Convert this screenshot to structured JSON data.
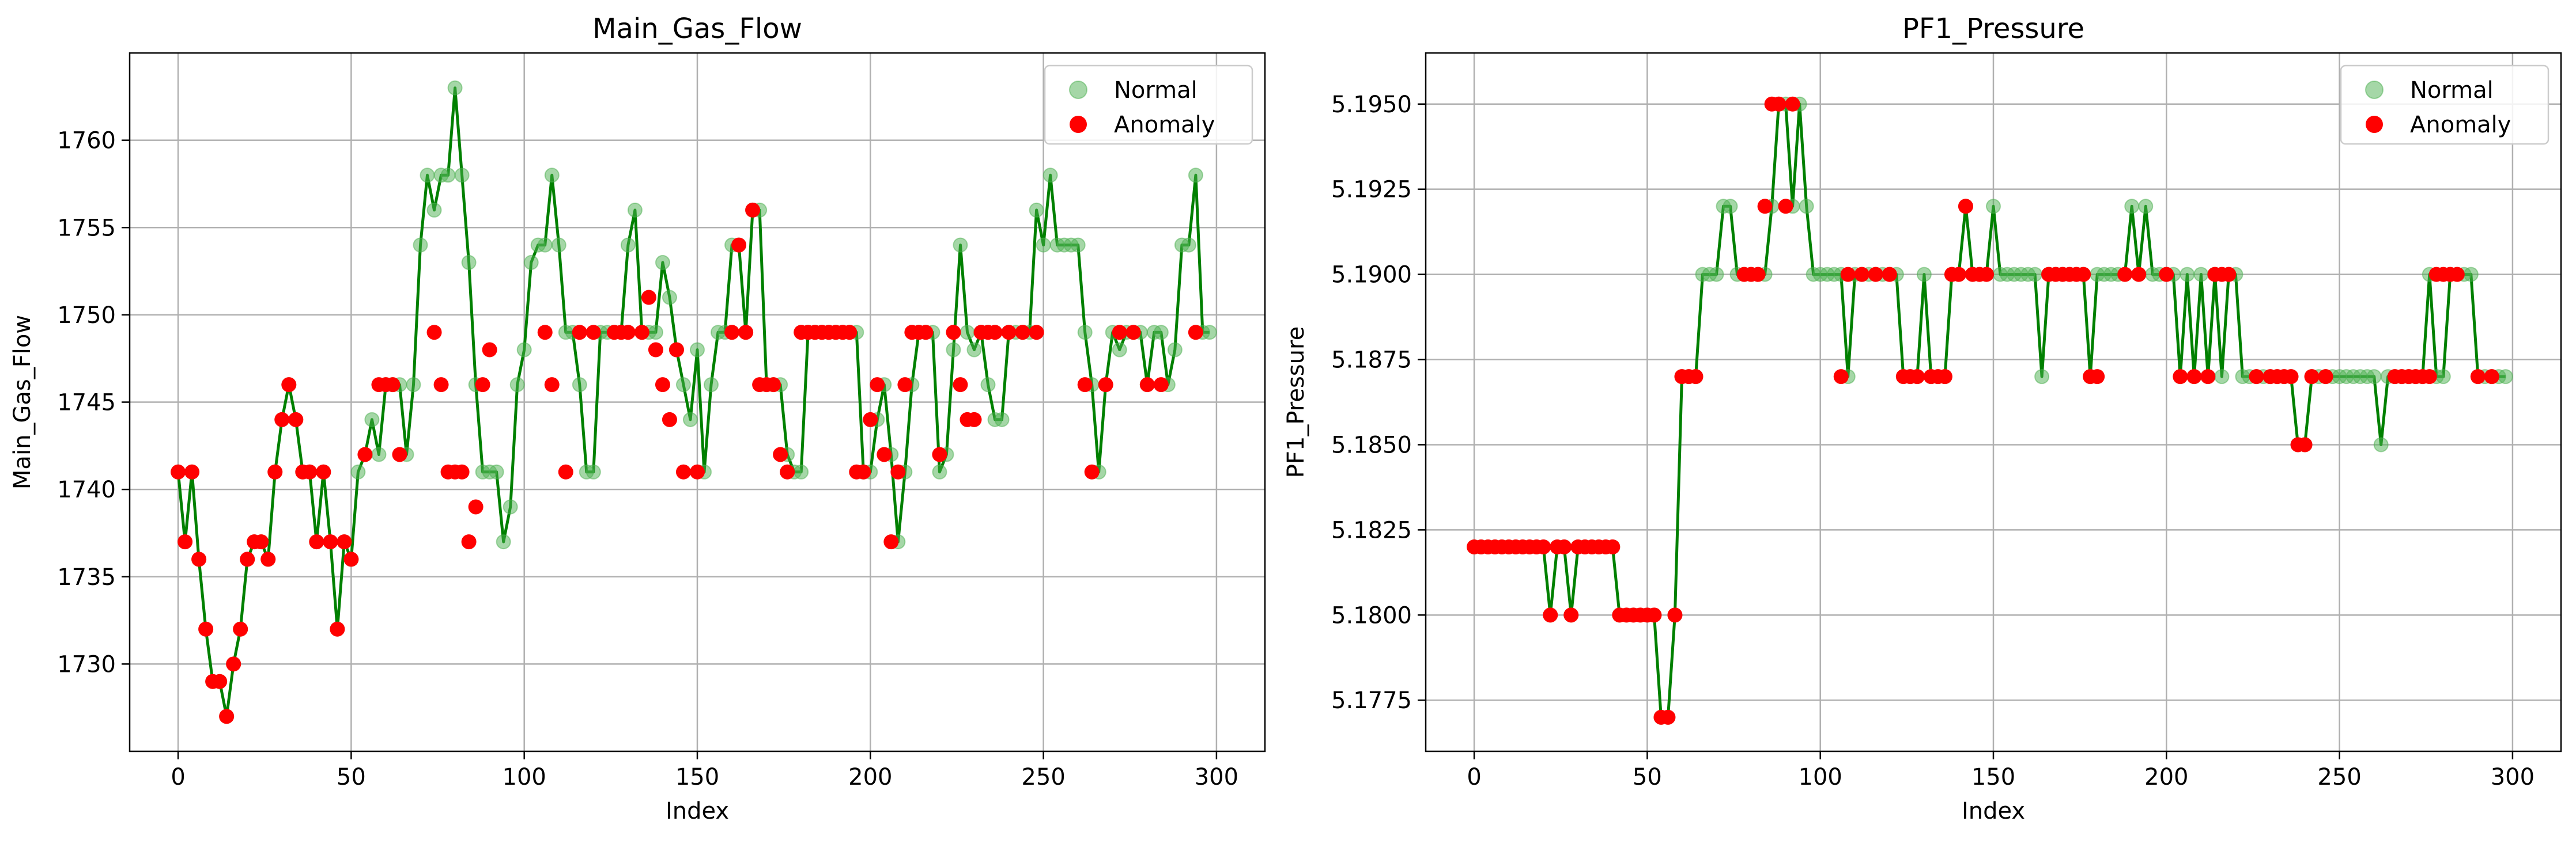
{
  "colors": {
    "line": "#008000",
    "normal_marker": "#4caf50",
    "anomaly_marker": "#ff0000",
    "grid": "#b0b0b0"
  },
  "chart_data": [
    {
      "type": "line",
      "title": "Main_Gas_Flow",
      "xlabel": "Index",
      "ylabel": "Main_Gas_Flow",
      "xlim": [
        -14,
        314
      ],
      "ylim": [
        1725,
        1765
      ],
      "xticks": [
        0,
        50,
        100,
        150,
        200,
        250,
        300
      ],
      "yticks": [
        1730,
        1735,
        1740,
        1745,
        1750,
        1755,
        1760
      ],
      "grid": true,
      "legend_position": "top-right",
      "legend": [
        "Normal",
        "Anomaly"
      ],
      "x": [
        0,
        2,
        4,
        6,
        8,
        10,
        12,
        14,
        16,
        18,
        20,
        22,
        24,
        26,
        28,
        30,
        32,
        34,
        36,
        38,
        40,
        42,
        44,
        46,
        48,
        50,
        52,
        54,
        56,
        58,
        60,
        62,
        64,
        66,
        68,
        70,
        72,
        74,
        76,
        78,
        80,
        82,
        84,
        86,
        88,
        90,
        92,
        94,
        96,
        98,
        100,
        102,
        104,
        106,
        108,
        110,
        112,
        114,
        116,
        118,
        120,
        122,
        124,
        126,
        128,
        130,
        132,
        134,
        136,
        138,
        140,
        142,
        144,
        146,
        148,
        150,
        152,
        154,
        156,
        158,
        160,
        162,
        164,
        166,
        168,
        170,
        172,
        174,
        176,
        178,
        180,
        182,
        184,
        186,
        188,
        190,
        192,
        194,
        196,
        198,
        200,
        202,
        204,
        206,
        208,
        210,
        212,
        214,
        216,
        218,
        220,
        222,
        224,
        226,
        228,
        230,
        232,
        234,
        236,
        238,
        240,
        242,
        244,
        246,
        248,
        250,
        252,
        254,
        256,
        258,
        260,
        262,
        264,
        266,
        268,
        270,
        272,
        274,
        276,
        278,
        280,
        282,
        284,
        286,
        288,
        290,
        292,
        294,
        296,
        298
      ],
      "y": [
        1741,
        1737,
        1741,
        1736,
        1732,
        1729,
        1729,
        1727,
        1730,
        1732,
        1736,
        1737,
        1737,
        1736,
        1741,
        1744,
        1746,
        1744,
        1741,
        1741,
        1737,
        1741,
        1737,
        1732,
        1737,
        1736,
        1741,
        1742,
        1744,
        1742,
        1746,
        1746,
        1746,
        1742,
        1746,
        1754,
        1758,
        1756,
        1758,
        1758,
        1763,
        1758,
        1753,
        1746,
        1741,
        1741,
        1741,
        1737,
        1739,
        1746,
        1748,
        1753,
        1754,
        1754,
        1758,
        1754,
        1749,
        1749,
        1746,
        1741,
        1741,
        1749,
        1749,
        1749,
        1749,
        1754,
        1756,
        1749,
        1749,
        1749,
        1753,
        1751,
        1748,
        1746,
        1744,
        1748,
        1741,
        1746,
        1749,
        1749,
        1754,
        1754,
        1749,
        1756,
        1756,
        1746,
        1746,
        1746,
        1742,
        1741,
        1741,
        1749,
        1749,
        1749,
        1749,
        1749,
        1749,
        1749,
        1749,
        1741,
        1741,
        1744,
        1746,
        1742,
        1737,
        1741,
        1746,
        1749,
        1749,
        1749,
        1741,
        1742,
        1748,
        1754,
        1749,
        1748,
        1749,
        1746,
        1744,
        1744,
        1749,
        1749,
        1749,
        1749,
        1756,
        1754,
        1758,
        1754,
        1754,
        1754,
        1754,
        1749,
        1746,
        1741,
        1746,
        1749,
        1748,
        1749,
        1749,
        1749,
        1746,
        1749,
        1749,
        1746,
        1748,
        1754,
        1754,
        1758,
        1749,
        1749
      ],
      "anomaly_x": [
        0,
        2,
        4,
        6,
        8,
        10,
        12,
        14,
        16,
        18,
        20,
        22,
        24,
        26,
        28,
        30,
        32,
        34,
        36,
        38,
        40,
        42,
        44,
        46,
        48,
        50,
        54,
        58,
        60,
        62,
        64,
        74,
        76,
        78,
        80,
        82,
        84,
        86,
        88,
        90,
        106,
        108,
        112,
        116,
        120,
        126,
        128,
        130,
        134,
        136,
        138,
        140,
        142,
        144,
        146,
        150,
        160,
        162,
        164,
        166,
        168,
        170,
        172,
        174,
        176,
        180,
        182,
        184,
        186,
        188,
        190,
        192,
        194,
        196,
        198,
        200,
        202,
        204,
        206,
        208,
        210,
        212,
        214,
        216,
        220,
        224,
        226,
        228,
        230,
        232,
        234,
        236,
        240,
        244,
        248,
        262,
        264,
        268,
        272,
        276,
        280,
        284,
        294
      ],
      "anomaly_y": [
        1741,
        1737,
        1741,
        1736,
        1732,
        1729,
        1729,
        1727,
        1730,
        1732,
        1736,
        1737,
        1737,
        1736,
        1741,
        1744,
        1746,
        1744,
        1741,
        1741,
        1737,
        1741,
        1737,
        1732,
        1737,
        1736,
        1742,
        1746,
        1746,
        1746,
        1742,
        1749,
        1746,
        1741,
        1741,
        1741,
        1737,
        1739,
        1746,
        1748,
        1749,
        1746,
        1741,
        1749,
        1749,
        1749,
        1749,
        1749,
        1749,
        1751,
        1748,
        1746,
        1744,
        1748,
        1741,
        1741,
        1749,
        1754,
        1749,
        1756,
        1746,
        1746,
        1746,
        1742,
        1741,
        1749,
        1749,
        1749,
        1749,
        1749,
        1749,
        1749,
        1749,
        1741,
        1741,
        1744,
        1746,
        1742,
        1737,
        1741,
        1746,
        1749,
        1749,
        1749,
        1742,
        1749,
        1746,
        1744,
        1744,
        1749,
        1749,
        1749,
        1749,
        1749,
        1749,
        1746,
        1741,
        1746,
        1749,
        1749,
        1746,
        1746,
        1749
      ]
    },
    {
      "type": "line",
      "title": "PF1_Pressure",
      "xlabel": "Index",
      "ylabel": "PF1_Pressure",
      "xlim": [
        -14,
        314
      ],
      "ylim": [
        5.176,
        5.1965
      ],
      "xticks": [
        0,
        50,
        100,
        150,
        200,
        250,
        300
      ],
      "yticks": [
        5.1775,
        5.18,
        5.1825,
        5.185,
        5.1875,
        5.19,
        5.1925,
        5.195
      ],
      "ytick_labels": [
        "5.1775",
        "5.1800",
        "5.1825",
        "5.1850",
        "5.1875",
        "5.1900",
        "5.1925",
        "5.1950"
      ],
      "grid": true,
      "legend_position": "top-right",
      "legend": [
        "Normal",
        "Anomaly"
      ],
      "x": [
        0,
        2,
        4,
        6,
        8,
        10,
        12,
        14,
        16,
        18,
        20,
        22,
        24,
        26,
        28,
        30,
        32,
        34,
        36,
        38,
        40,
        42,
        44,
        46,
        48,
        50,
        52,
        54,
        56,
        58,
        60,
        62,
        64,
        66,
        68,
        70,
        72,
        74,
        76,
        78,
        80,
        82,
        84,
        86,
        88,
        90,
        92,
        94,
        96,
        98,
        100,
        102,
        104,
        106,
        108,
        110,
        112,
        114,
        116,
        118,
        120,
        122,
        124,
        126,
        128,
        130,
        132,
        134,
        136,
        138,
        140,
        142,
        144,
        146,
        148,
        150,
        152,
        154,
        156,
        158,
        160,
        162,
        164,
        166,
        168,
        170,
        172,
        174,
        176,
        178,
        180,
        182,
        184,
        186,
        188,
        190,
        192,
        194,
        196,
        198,
        200,
        202,
        204,
        206,
        208,
        210,
        212,
        214,
        216,
        218,
        220,
        222,
        224,
        226,
        228,
        230,
        232,
        234,
        236,
        238,
        240,
        242,
        244,
        246,
        248,
        250,
        252,
        254,
        256,
        258,
        260,
        262,
        264,
        266,
        268,
        270,
        272,
        274,
        276,
        278,
        280,
        282,
        284,
        286,
        288,
        290,
        292,
        294,
        296,
        298
      ],
      "y": [
        5.182,
        5.182,
        5.182,
        5.182,
        5.182,
        5.182,
        5.182,
        5.182,
        5.182,
        5.182,
        5.182,
        5.18,
        5.182,
        5.182,
        5.18,
        5.182,
        5.182,
        5.182,
        5.182,
        5.182,
        5.182,
        5.18,
        5.18,
        5.18,
        5.18,
        5.18,
        5.18,
        5.177,
        5.177,
        5.18,
        5.187,
        5.187,
        5.187,
        5.19,
        5.19,
        5.19,
        5.192,
        5.192,
        5.19,
        5.19,
        5.19,
        5.19,
        5.19,
        5.192,
        5.195,
        5.195,
        5.192,
        5.195,
        5.192,
        5.19,
        5.19,
        5.19,
        5.19,
        5.19,
        5.187,
        5.19,
        5.19,
        5.19,
        5.19,
        5.19,
        5.19,
        5.19,
        5.187,
        5.187,
        5.187,
        5.19,
        5.187,
        5.187,
        5.187,
        5.19,
        5.19,
        5.192,
        5.19,
        5.19,
        5.19,
        5.192,
        5.19,
        5.19,
        5.19,
        5.19,
        5.19,
        5.19,
        5.187,
        5.19,
        5.19,
        5.19,
        5.19,
        5.19,
        5.19,
        5.187,
        5.19,
        5.19,
        5.19,
        5.19,
        5.19,
        5.192,
        5.19,
        5.192,
        5.19,
        5.19,
        5.19,
        5.19,
        5.187,
        5.19,
        5.187,
        5.19,
        5.187,
        5.19,
        5.187,
        5.19,
        5.19,
        5.187,
        5.187,
        5.187,
        5.187,
        5.187,
        5.187,
        5.187,
        5.187,
        5.185,
        5.185,
        5.187,
        5.187,
        5.187,
        5.187,
        5.187,
        5.187,
        5.187,
        5.187,
        5.187,
        5.187,
        5.185,
        5.187,
        5.187,
        5.187,
        5.187,
        5.187,
        5.187,
        5.19,
        5.187,
        5.187,
        5.19,
        5.19,
        5.19,
        5.19,
        5.187,
        5.187,
        5.187,
        5.187,
        5.187
      ],
      "anomaly_x": [
        0,
        2,
        4,
        6,
        8,
        10,
        12,
        14,
        16,
        18,
        20,
        22,
        24,
        26,
        28,
        30,
        32,
        34,
        36,
        38,
        40,
        42,
        44,
        46,
        48,
        50,
        52,
        54,
        56,
        58,
        60,
        62,
        64,
        78,
        80,
        82,
        84,
        86,
        88,
        90,
        92,
        106,
        108,
        112,
        116,
        120,
        124,
        126,
        128,
        132,
        134,
        136,
        138,
        140,
        142,
        144,
        146,
        148,
        166,
        168,
        170,
        172,
        174,
        176,
        178,
        180,
        188,
        192,
        200,
        204,
        208,
        212,
        214,
        216,
        218,
        226,
        230,
        232,
        234,
        236,
        238,
        240,
        242,
        246,
        266,
        268,
        270,
        272,
        274,
        276,
        278,
        280,
        282,
        284,
        290,
        294
      ],
      "anomaly_y": [
        5.182,
        5.182,
        5.182,
        5.182,
        5.182,
        5.182,
        5.182,
        5.182,
        5.182,
        5.182,
        5.182,
        5.18,
        5.182,
        5.182,
        5.18,
        5.182,
        5.182,
        5.182,
        5.182,
        5.182,
        5.182,
        5.18,
        5.18,
        5.18,
        5.18,
        5.18,
        5.18,
        5.177,
        5.177,
        5.18,
        5.187,
        5.187,
        5.187,
        5.19,
        5.19,
        5.19,
        5.192,
        5.195,
        5.195,
        5.192,
        5.195,
        5.187,
        5.19,
        5.19,
        5.19,
        5.19,
        5.187,
        5.187,
        5.187,
        5.187,
        5.187,
        5.187,
        5.19,
        5.19,
        5.192,
        5.19,
        5.19,
        5.19,
        5.19,
        5.19,
        5.19,
        5.19,
        5.19,
        5.19,
        5.187,
        5.187,
        5.19,
        5.19,
        5.19,
        5.187,
        5.187,
        5.187,
        5.19,
        5.19,
        5.19,
        5.187,
        5.187,
        5.187,
        5.187,
        5.187,
        5.185,
        5.185,
        5.187,
        5.187,
        5.187,
        5.187,
        5.187,
        5.187,
        5.187,
        5.187,
        5.19,
        5.19,
        5.19,
        5.19,
        5.187,
        5.187
      ]
    }
  ]
}
